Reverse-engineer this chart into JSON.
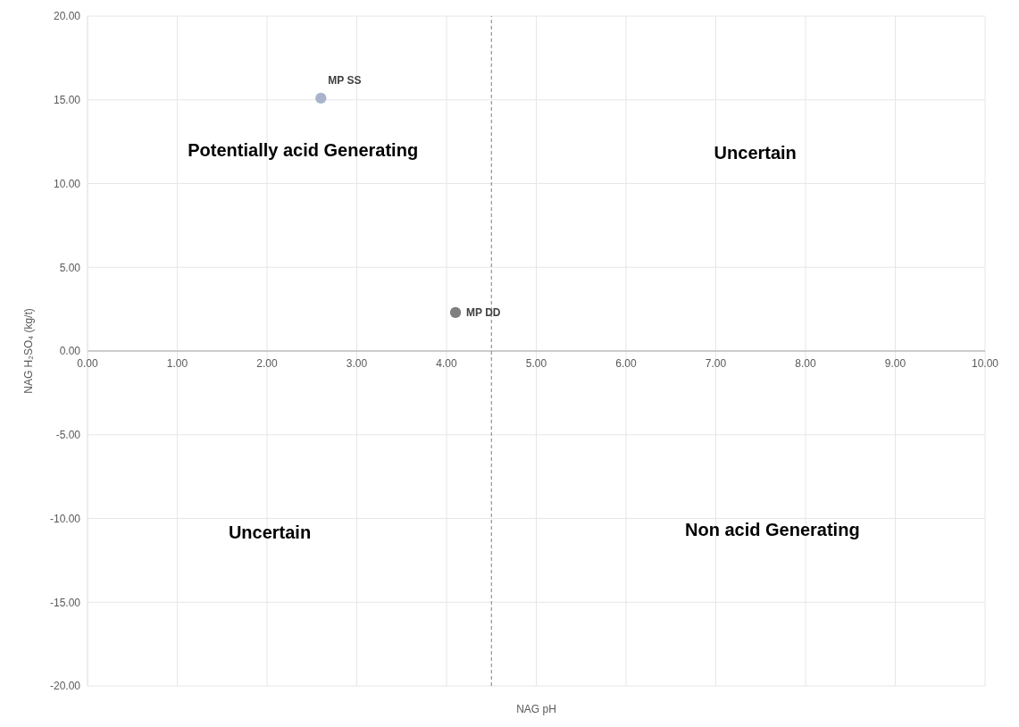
{
  "chart_data": {
    "type": "scatter",
    "xlabel": "NAG pH",
    "ylabel": "NAG H₂SO₄ (kg/t)",
    "xlim": [
      0,
      10
    ],
    "xticks": [
      {
        "value": 0,
        "label": "0.00"
      },
      {
        "value": 1,
        "label": "1.00"
      },
      {
        "value": 2,
        "label": "2.00"
      },
      {
        "value": 3,
        "label": "3.00"
      },
      {
        "value": 4,
        "label": "4.00"
      },
      {
        "value": 5,
        "label": "5.00"
      },
      {
        "value": 6,
        "label": "6.00"
      },
      {
        "value": 7,
        "label": "7.00"
      },
      {
        "value": 8,
        "label": "8.00"
      },
      {
        "value": 9,
        "label": "9.00"
      },
      {
        "value": 10,
        "label": "10.00"
      }
    ],
    "ylim": [
      -20,
      20
    ],
    "yticks": [
      {
        "value": -20,
        "label": "-20.00"
      },
      {
        "value": -15,
        "label": "-15.00"
      },
      {
        "value": -10,
        "label": "-10.00"
      },
      {
        "value": -5,
        "label": "-5.00"
      },
      {
        "value": 0,
        "label": "0.00"
      },
      {
        "value": 5,
        "label": "5.00"
      },
      {
        "value": 10,
        "label": "10.00"
      },
      {
        "value": 15,
        "label": "15.00"
      },
      {
        "value": 20,
        "label": "20.00"
      }
    ],
    "series": [
      {
        "name": "MP SS",
        "color": "#a9b4cc",
        "x": [
          2.6
        ],
        "values": [
          15.1
        ]
      },
      {
        "name": "MP DD",
        "color": "#7f7f7f",
        "x": [
          4.1
        ],
        "values": [
          2.3
        ]
      }
    ],
    "ref_lines": [
      {
        "axis": "x",
        "value": 4.5,
        "color": "#7f7f7f",
        "line_style": "dashed"
      }
    ],
    "annotations": [
      "Potentially acid Generating",
      "Uncertain",
      "Uncertain",
      "Non acid Generating"
    ],
    "grid": true,
    "marker": "circle"
  }
}
